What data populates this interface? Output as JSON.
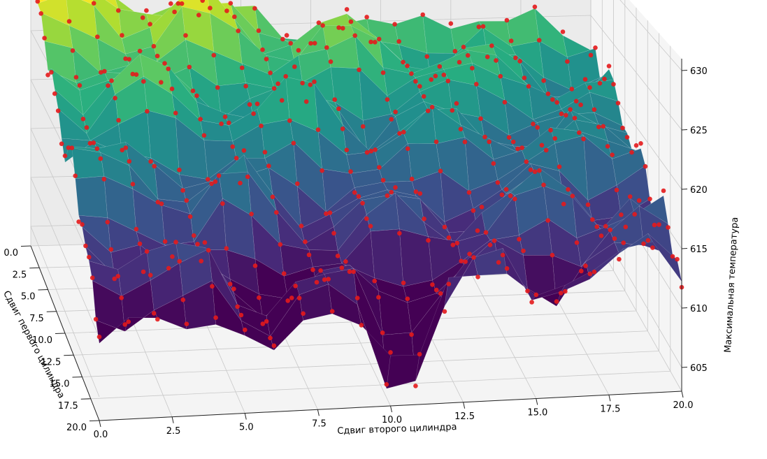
{
  "chart_data": {
    "type": "surface3d",
    "xlabel": "Сдвиг первого цилиндра",
    "ylabel": "Сдвиг второго цилиндра",
    "zlabel": "Максимальная температура",
    "x_ticks": [
      "0.0",
      "2.5",
      "5.0",
      "7.5",
      "10.0",
      "12.5",
      "15.0",
      "17.5",
      "20.0"
    ],
    "y_ticks": [
      "0.0",
      "2.5",
      "5.0",
      "7.5",
      "10.0",
      "12.5",
      "15.0",
      "17.5",
      "20.0"
    ],
    "z_ticks": [
      "605",
      "610",
      "615",
      "620",
      "625",
      "630"
    ],
    "xlim": [
      0,
      20
    ],
    "ylim": [
      0,
      20
    ],
    "zlim": [
      603,
      631
    ],
    "grid": true,
    "colormap": "viridis",
    "scatter_color": "#e41a1c",
    "surface_grid_step": 1,
    "surface_corners_z": {
      "x0_y0": 630,
      "x0_y20": 622,
      "x20_y0": 612,
      "x20_y20": 614
    },
    "surface_valley": {
      "center_x": 16,
      "center_y": 9,
      "depth": 613
    },
    "deep_dips": [
      {
        "x": 19,
        "y": 10.5,
        "z": 606
      },
      {
        "x": 14.5,
        "y": 21,
        "z": 607.5
      }
    ]
  }
}
